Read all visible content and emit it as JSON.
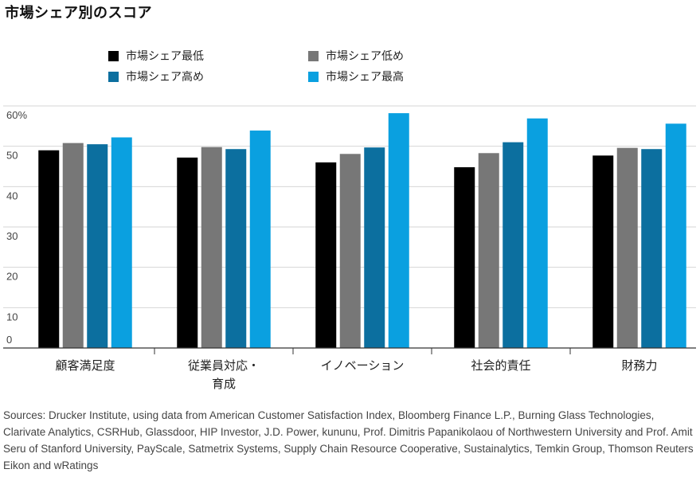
{
  "title": "市場シェア別のスコア",
  "legend": [
    {
      "label": "市場シェア最低",
      "color": "#000000"
    },
    {
      "label": "市場シェア低め",
      "color": "#777777"
    },
    {
      "label": "市場シェア高め",
      "color": "#0c6f9f"
    },
    {
      "label": "市場シェア最高",
      "color": "#0aa0e0"
    }
  ],
  "chart_data": {
    "type": "bar",
    "categories": [
      [
        "顧客満足度"
      ],
      [
        "従業員対応・",
        "育成"
      ],
      [
        "イノベーション"
      ],
      [
        "社会的責任"
      ],
      [
        "財務力"
      ]
    ],
    "series": [
      {
        "name": "市場シェア最低",
        "color": "#000000",
        "values": [
          49,
          47.2,
          46,
          44.8,
          47.7
        ]
      },
      {
        "name": "市場シェア低め",
        "color": "#777777",
        "values": [
          50.8,
          49.8,
          48.1,
          48.3,
          49.6
        ]
      },
      {
        "name": "市場シェア高め",
        "color": "#0c6f9f",
        "values": [
          50.5,
          49.3,
          49.7,
          51,
          49.3
        ]
      },
      {
        "name": "市場シェア最高",
        "color": "#0aa0e0",
        "values": [
          52.2,
          53.9,
          58.2,
          56.9,
          55.6
        ]
      }
    ],
    "ylim": [
      0,
      60
    ],
    "yticks": [
      "0",
      "10",
      "20",
      "30",
      "40",
      "50",
      "60%"
    ],
    "grid": true
  },
  "sources": "Sources: Drucker Institute, using data from American Customer Satisfaction Index, Bloomberg Finance L.P., Burning Glass Technologies, Clarivate Analytics, CSRHub, Glassdoor, HIP Investor, J.D. Power, kununu, Prof. Dimitris Papanikolaou of Northwestern University and Prof. Amit Seru of Stanford University, PayScale, Satmetrix Systems, Supply Chain Resource Cooperative, Sustainalytics, Temkin Group, Thomson Reuters Eikon and wRatings"
}
